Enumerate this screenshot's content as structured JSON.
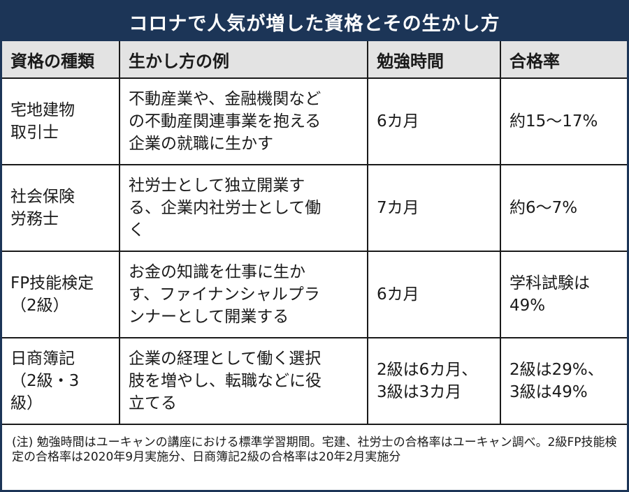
{
  "title": "コロナで人気が増した資格とその生かし方",
  "headers": [
    "資格の種類",
    "生かし方の例",
    "勉強時間",
    "合格率"
  ],
  "rows": [
    {
      "name": "宅地建物\n取引士",
      "usage": "不動産業や、金融機関など\nの不動産関連事業を抱える\n企業の就職に生かす",
      "study": "6カ月",
      "rate": "約15～17%"
    },
    {
      "name": "社会保険\n労務士",
      "usage": "社労士として独立開業す\nる、企業内社労士として働\nく",
      "study": "7カ月",
      "rate": "約6～7%"
    },
    {
      "name": "FP技能検定\n（2級）",
      "usage": "お金の知識を仕事に生か\nす、ファイナンシャルプラ\nンナーとして開業する",
      "study": "6カ月",
      "rate": "学科試験は\n49%"
    },
    {
      "name": "日商簿記\n（2級・3\n級）",
      "usage": "企業の経理として働く選択\n肢を増やし、転職などに役\n立てる",
      "study": "2級は6カ月、\n3級は3カ月",
      "rate": "2級は29%、\n3級は49%"
    }
  ],
  "note": "(注) 勉強時間はユーキャンの講座における標準学習期間。宅建、社労士の合格率はユーキャン調べ。2級FP技能検定の合格率は2020年9月実施分、日商簿記2級の合格率は20年2月実施分",
  "colors": {
    "title_bg": "#1c3557",
    "header_bg": "#e3e3e3",
    "border": "#1a1a1a"
  }
}
